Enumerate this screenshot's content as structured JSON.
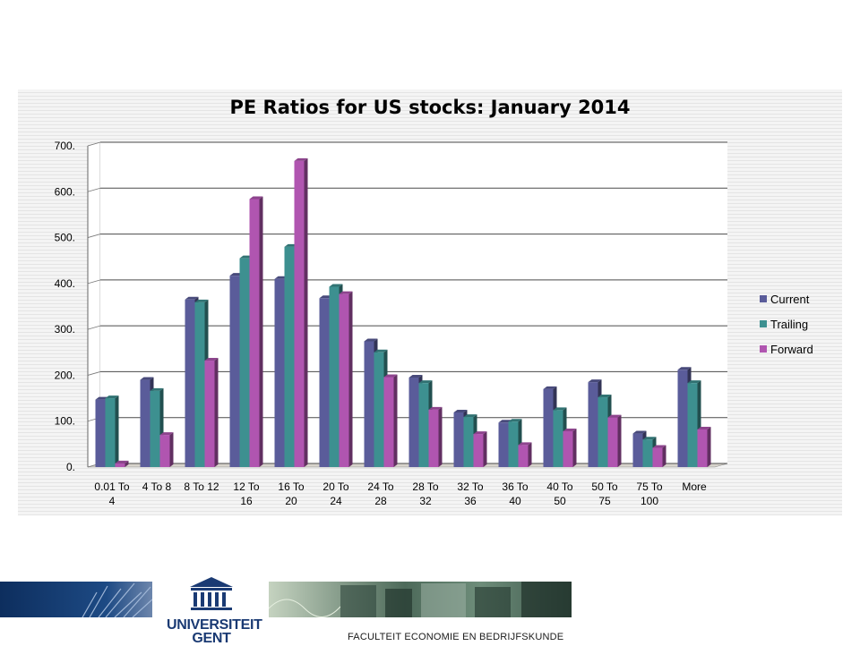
{
  "footer": {
    "university_name_line1": "UNIVERSITEIT",
    "university_name_line2": "GENT",
    "faculty": "FACULTEIT ECONOMIE EN BEDRIJFSKUNDE"
  },
  "colors": {
    "current": "#5a5c9a",
    "trailing": "#3d9090",
    "forward": "#b055b0",
    "brand": "#1a3a73"
  },
  "chart_data": {
    "type": "bar",
    "title": "PE Ratios for US stocks: January 2014",
    "categories": [
      [
        "0.01 To",
        "4"
      ],
      [
        "4 To 8"
      ],
      [
        "8 To 12"
      ],
      [
        "12 To",
        "16"
      ],
      [
        "16 To",
        "20"
      ],
      [
        "20 To",
        "24"
      ],
      [
        "24 To",
        "28"
      ],
      [
        "28 To",
        "32"
      ],
      [
        "32 To",
        "36"
      ],
      [
        "36 To",
        "40"
      ],
      [
        "40 To",
        "50"
      ],
      [
        "50 To",
        "75"
      ],
      [
        "75 To",
        "100"
      ],
      [
        "More"
      ]
    ],
    "series": [
      {
        "name": "Current",
        "values": [
          147,
          190,
          365,
          417,
          410,
          368,
          274,
          195,
          119,
          97,
          170,
          185,
          73,
          212
        ]
      },
      {
        "name": "Trailing",
        "values": [
          150,
          166,
          359,
          455,
          480,
          393,
          250,
          183,
          109,
          99,
          124,
          152,
          60,
          183
        ]
      },
      {
        "name": "Forward",
        "values": [
          8,
          70,
          232,
          584,
          667,
          377,
          196,
          125,
          72,
          48,
          78,
          108,
          42,
          82
        ]
      }
    ],
    "y_ticks": [
      "0.",
      "100.",
      "200.",
      "300.",
      "400.",
      "500.",
      "600.",
      "700."
    ],
    "ylim": [
      0,
      700
    ],
    "grid": true,
    "legend_position": "right"
  }
}
